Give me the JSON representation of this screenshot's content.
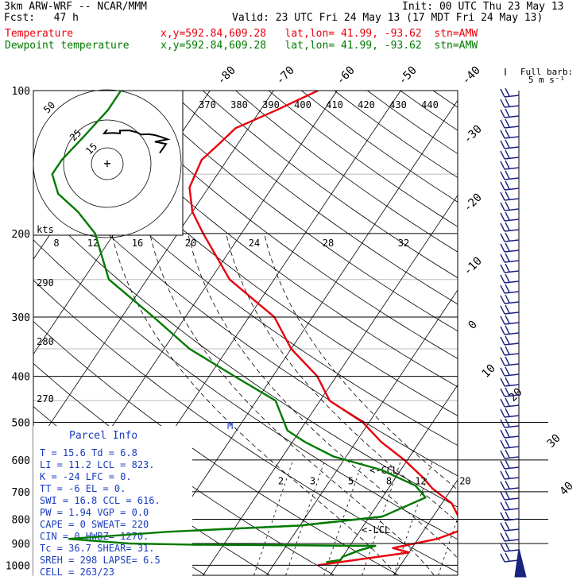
{
  "header": {
    "model": "3km ARW-WRF -- NCAR/MMM",
    "fcst": "Fcst:   47 h",
    "init": "Init: 00 UTC Thu 23 May 13",
    "valid": "Valid: 23 UTC Fri 24 May 13 (17 MDT Fri 24 May 13)"
  },
  "legend": [
    {
      "name": "Temperature",
      "location": "x,y=592.84,609.28   lat,lon= 41.99, -93.62  stn=AMW",
      "color": "#e8000b"
    },
    {
      "name": "Dewpoint temperature",
      "location": "x,y=592.84,609.28   lat,lon= 41.99, -93.62  stn=AMW",
      "color": "#007a00"
    }
  ],
  "wind_key": {
    "line1": "Full barb:",
    "line2": "5 m s⁻¹"
  },
  "chart_data": {
    "type": "line",
    "diagram": "skew-T log-p",
    "y_ticks": [
      100,
      200,
      300,
      400,
      500,
      600,
      700,
      800,
      900,
      1000
    ],
    "ylim": [
      1000,
      100
    ],
    "isotherm_labels": [
      "-80",
      "-70",
      "-60",
      "-50",
      "-40",
      "-30",
      "-20",
      "-10",
      "0",
      "10",
      "20",
      "30",
      "40"
    ],
    "theta_labels": [
      "370",
      "380",
      "390",
      "400",
      "410",
      "420",
      "430",
      "440"
    ],
    "theta_left_labels": [
      "290",
      "280",
      "270"
    ],
    "speed_labels": [
      "kts",
      "8",
      "12",
      "16",
      "20",
      "24",
      "28",
      "32"
    ],
    "mixing_ratio_labels": [
      "2",
      "3",
      "5",
      "8",
      "12",
      "20"
    ],
    "level_labels": [
      "<-CCL",
      "<-LCL",
      "M"
    ],
    "hodograph_ring_labels": [
      "50",
      "25",
      "15"
    ],
    "series": [
      {
        "name": "Temperature",
        "color": "#e8000b",
        "points": [
          [
            -3,
            1000
          ],
          [
            10,
            940
          ],
          [
            7,
            920
          ],
          [
            13,
            880
          ],
          [
            15.6,
            846
          ],
          [
            14.5,
            800
          ],
          [
            11.5,
            740
          ],
          [
            7,
            690
          ],
          [
            4,
            650
          ],
          [
            -0.5,
            600
          ],
          [
            -6,
            550
          ],
          [
            -11,
            500
          ],
          [
            -18.5,
            450
          ],
          [
            -23,
            400
          ],
          [
            -30,
            350
          ],
          [
            -36,
            300
          ],
          [
            -47,
            250
          ],
          [
            -56,
            200
          ],
          [
            -60,
            180
          ],
          [
            -63,
            160
          ],
          [
            -64,
            140
          ],
          [
            -63,
            130
          ],
          [
            -62,
            120
          ],
          [
            -57.5,
            110
          ],
          [
            -53,
            100
          ]
        ]
      },
      {
        "name": "Dewpoint temperature",
        "color": "#007a00",
        "points": [
          [
            -2,
            985
          ],
          [
            0,
            975
          ],
          [
            0,
            960
          ],
          [
            2,
            930
          ],
          [
            4,
            910
          ],
          [
            -25,
            905
          ],
          [
            -35,
            900
          ],
          [
            -45,
            880
          ],
          [
            -30,
            850
          ],
          [
            -10,
            825
          ],
          [
            2,
            790
          ],
          [
            6.8,
            720
          ],
          [
            4,
            680
          ],
          [
            -3,
            630
          ],
          [
            -12,
            590
          ],
          [
            -18,
            550
          ],
          [
            -22,
            520
          ],
          [
            -27,
            450
          ],
          [
            -36,
            400
          ],
          [
            -46,
            350
          ],
          [
            -55,
            300
          ],
          [
            -66,
            250
          ],
          [
            -73,
            200
          ],
          [
            -78,
            180
          ],
          [
            -83,
            165
          ],
          [
            -86,
            150
          ],
          [
            -86,
            140
          ],
          [
            -85,
            125
          ],
          [
            -84,
            110
          ],
          [
            -84,
            100
          ]
        ]
      }
    ],
    "hodograph": [
      [
        0,
        0
      ],
      [
        14,
        -4
      ],
      [
        12,
        8
      ],
      [
        14,
        16
      ],
      [
        4,
        16
      ],
      [
        3,
        28
      ],
      [
        11,
        38
      ],
      [
        18,
        42
      ],
      [
        17,
        52
      ],
      [
        20,
        60
      ],
      [
        27,
        68
      ],
      [
        35,
        76
      ],
      [
        44,
        60
      ],
      [
        52,
        74
      ],
      [
        76,
        66
      ]
    ]
  },
  "parcel_info": {
    "title": "Parcel Info",
    "rows": [
      "T  =    15.6  Td =    6.8",
      "LI =    11.2  LCL =  823.",
      "K  =     -24  LFC =    0.",
      "TT =      -6  EL  =    0.",
      "SWI =   16.8  CCL =  616.",
      "PW =    1.94  VGP =   0.0",
      "CAPE =     0  SWEAT=  220",
      "CIN =      0  HWBZ= 1270.",
      "Tc =    36.7  SHEAR=   31.",
      "SREH =   298  LAPSE=   6.5",
      "CELL = 263/23"
    ]
  }
}
